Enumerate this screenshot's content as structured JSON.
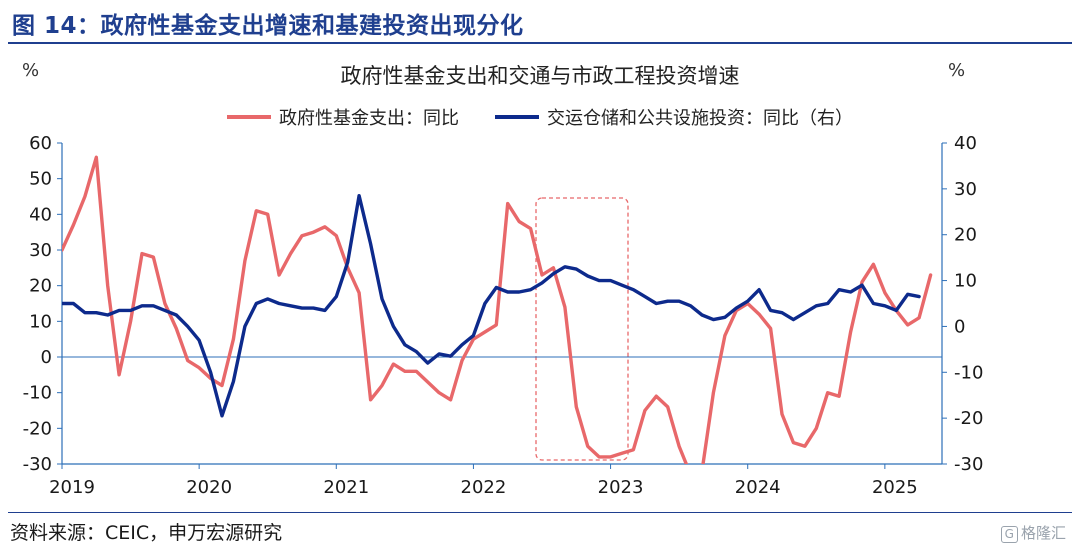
{
  "figure_title": "图 14：政府性基金支出增速和基建投资出现分化",
  "source_note": "资料来源：CEIC，申万宏源研究",
  "watermark": "格隆汇",
  "colors": {
    "series_1": "#e8686a",
    "series_2": "#0d2a8c",
    "highlight": "#e8686a",
    "axis": "#2c6fb8"
  },
  "chart_data": {
    "type": "line",
    "title": "政府性基金支出和交通与市政工程投资增速",
    "unit_left": "%",
    "unit_right": "%",
    "xlabel": "",
    "ylabel": "",
    "x_tick_labels": [
      "2019",
      "2020",
      "2021",
      "2022",
      "2023",
      "2024",
      "2025"
    ],
    "y_left_ticks": [
      "60",
      "50",
      "40",
      "30",
      "20",
      "10",
      "0",
      "-10",
      "-20",
      "-30"
    ],
    "y_right_ticks": [
      "40",
      "30",
      "20",
      "10",
      "0",
      "-10",
      "-20",
      "-30"
    ],
    "ylim_left": [
      -30,
      60
    ],
    "ylim_right": [
      -30,
      40
    ],
    "grid": false,
    "legend_position": "top-center",
    "highlight_range": [
      "2022-07",
      "2023-02"
    ],
    "series": [
      {
        "name": "政府性基金支出：同比",
        "axis": "left",
        "color": "#e8686a",
        "points": [
          [
            "2019-01",
            30
          ],
          [
            "2019-02",
            37
          ],
          [
            "2019-03",
            45
          ],
          [
            "2019-04",
            56
          ],
          [
            "2019-05",
            20
          ],
          [
            "2019-06",
            -5
          ],
          [
            "2019-07",
            10
          ],
          [
            "2019-08",
            29
          ],
          [
            "2019-09",
            28
          ],
          [
            "2019-10",
            15
          ],
          [
            "2019-11",
            8
          ],
          [
            "2019-12",
            -1
          ],
          [
            "2020-01",
            -3
          ],
          [
            "2020-02",
            -6
          ],
          [
            "2020-03",
            -8
          ],
          [
            "2020-04",
            5
          ],
          [
            "2020-05",
            27
          ],
          [
            "2020-06",
            41
          ],
          [
            "2020-07",
            40
          ],
          [
            "2020-08",
            23
          ],
          [
            "2020-09",
            29
          ],
          [
            "2020-10",
            34
          ],
          [
            "2020-11",
            35
          ],
          [
            "2020-12",
            36.5
          ],
          [
            "2021-01",
            34
          ],
          [
            "2021-02",
            25
          ],
          [
            "2021-03",
            18
          ],
          [
            "2021-04",
            -12
          ],
          [
            "2021-05",
            -8
          ],
          [
            "2021-06",
            -2
          ],
          [
            "2021-07",
            -4
          ],
          [
            "2021-08",
            -4
          ],
          [
            "2021-09",
            -7
          ],
          [
            "2021-10",
            -10
          ],
          [
            "2021-11",
            -12
          ],
          [
            "2021-12",
            -1
          ],
          [
            "2022-01",
            5
          ],
          [
            "2022-02",
            7
          ],
          [
            "2022-03",
            9
          ],
          [
            "2022-04",
            43
          ],
          [
            "2022-05",
            38
          ],
          [
            "2022-06",
            36
          ],
          [
            "2022-07",
            23
          ],
          [
            "2022-08",
            25
          ],
          [
            "2022-09",
            14
          ],
          [
            "2022-10",
            -14
          ],
          [
            "2022-11",
            -25
          ],
          [
            "2022-12",
            -28
          ],
          [
            "2023-01",
            -28
          ],
          [
            "2023-02",
            -27
          ],
          [
            "2023-03",
            -26
          ],
          [
            "2023-04",
            -15
          ],
          [
            "2023-05",
            -11
          ],
          [
            "2023-06",
            -14
          ],
          [
            "2023-07",
            -25
          ],
          [
            "2023-08",
            -33
          ],
          [
            "2023-09",
            -32
          ],
          [
            "2023-10",
            -10
          ],
          [
            "2023-11",
            6
          ],
          [
            "2023-12",
            13
          ],
          [
            "2024-01",
            15
          ],
          [
            "2024-02",
            12
          ],
          [
            "2024-03",
            8
          ],
          [
            "2024-04",
            -16
          ],
          [
            "2024-05",
            -24
          ],
          [
            "2024-06",
            -25
          ],
          [
            "2024-07",
            -20
          ],
          [
            "2024-08",
            -10
          ],
          [
            "2024-09",
            -11
          ],
          [
            "2024-10",
            7
          ],
          [
            "2024-11",
            21
          ],
          [
            "2024-12",
            26
          ],
          [
            "2025-01",
            18
          ],
          [
            "2025-02",
            13
          ],
          [
            "2025-03",
            9
          ],
          [
            "2025-04",
            11
          ],
          [
            "2025-05",
            23
          ]
        ]
      },
      {
        "name": "交运仓储和公共设施投资：同比（右）",
        "axis": "right",
        "color": "#0d2a8c",
        "points": [
          [
            "2019-01",
            5
          ],
          [
            "2019-02",
            5
          ],
          [
            "2019-03",
            3
          ],
          [
            "2019-04",
            3
          ],
          [
            "2019-05",
            2.5
          ],
          [
            "2019-06",
            3.5
          ],
          [
            "2019-07",
            3.5
          ],
          [
            "2019-08",
            4.5
          ],
          [
            "2019-09",
            4.5
          ],
          [
            "2019-10",
            3.5
          ],
          [
            "2019-11",
            2.5
          ],
          [
            "2019-12",
            0
          ],
          [
            "2020-01",
            -3
          ],
          [
            "2020-02",
            -10
          ],
          [
            "2020-03",
            -19.5
          ],
          [
            "2020-04",
            -12
          ],
          [
            "2020-05",
            0
          ],
          [
            "2020-06",
            5
          ],
          [
            "2020-07",
            6
          ],
          [
            "2020-08",
            5
          ],
          [
            "2020-09",
            4.5
          ],
          [
            "2020-10",
            4
          ],
          [
            "2020-11",
            4
          ],
          [
            "2020-12",
            3.5
          ],
          [
            "2021-01",
            6.5
          ],
          [
            "2021-02",
            14
          ],
          [
            "2021-03",
            28.5
          ],
          [
            "2021-04",
            18
          ],
          [
            "2021-05",
            6
          ],
          [
            "2021-06",
            0
          ],
          [
            "2021-07",
            -4
          ],
          [
            "2021-08",
            -5.5
          ],
          [
            "2021-09",
            -8
          ],
          [
            "2021-10",
            -6
          ],
          [
            "2021-11",
            -6.5
          ],
          [
            "2021-12",
            -4
          ],
          [
            "2022-01",
            -2
          ],
          [
            "2022-02",
            5
          ],
          [
            "2022-03",
            8.5
          ],
          [
            "2022-04",
            7.5
          ],
          [
            "2022-05",
            7.5
          ],
          [
            "2022-06",
            8
          ],
          [
            "2022-07",
            9.5
          ],
          [
            "2022-08",
            11.5
          ],
          [
            "2022-09",
            13
          ],
          [
            "2022-10",
            12.5
          ],
          [
            "2022-11",
            11
          ],
          [
            "2022-12",
            10
          ],
          [
            "2023-01",
            10
          ],
          [
            "2023-02",
            9
          ],
          [
            "2023-03",
            8
          ],
          [
            "2023-04",
            6.5
          ],
          [
            "2023-05",
            5
          ],
          [
            "2023-06",
            5.5
          ],
          [
            "2023-07",
            5.5
          ],
          [
            "2023-08",
            4.5
          ],
          [
            "2023-09",
            2.5
          ],
          [
            "2023-10",
            1.5
          ],
          [
            "2023-11",
            2
          ],
          [
            "2023-12",
            4
          ],
          [
            "2024-01",
            5.5
          ],
          [
            "2024-02",
            8
          ],
          [
            "2024-03",
            3.5
          ],
          [
            "2024-04",
            3
          ],
          [
            "2024-05",
            1.5
          ],
          [
            "2024-06",
            3
          ],
          [
            "2024-07",
            4.5
          ],
          [
            "2024-08",
            5
          ],
          [
            "2024-09",
            8
          ],
          [
            "2024-10",
            7.5
          ],
          [
            "2024-11",
            9
          ],
          [
            "2024-12",
            5
          ],
          [
            "2025-01",
            4.5
          ],
          [
            "2025-02",
            3.5
          ],
          [
            "2025-03",
            7
          ],
          [
            "2025-04",
            6.5
          ]
        ]
      }
    ]
  }
}
